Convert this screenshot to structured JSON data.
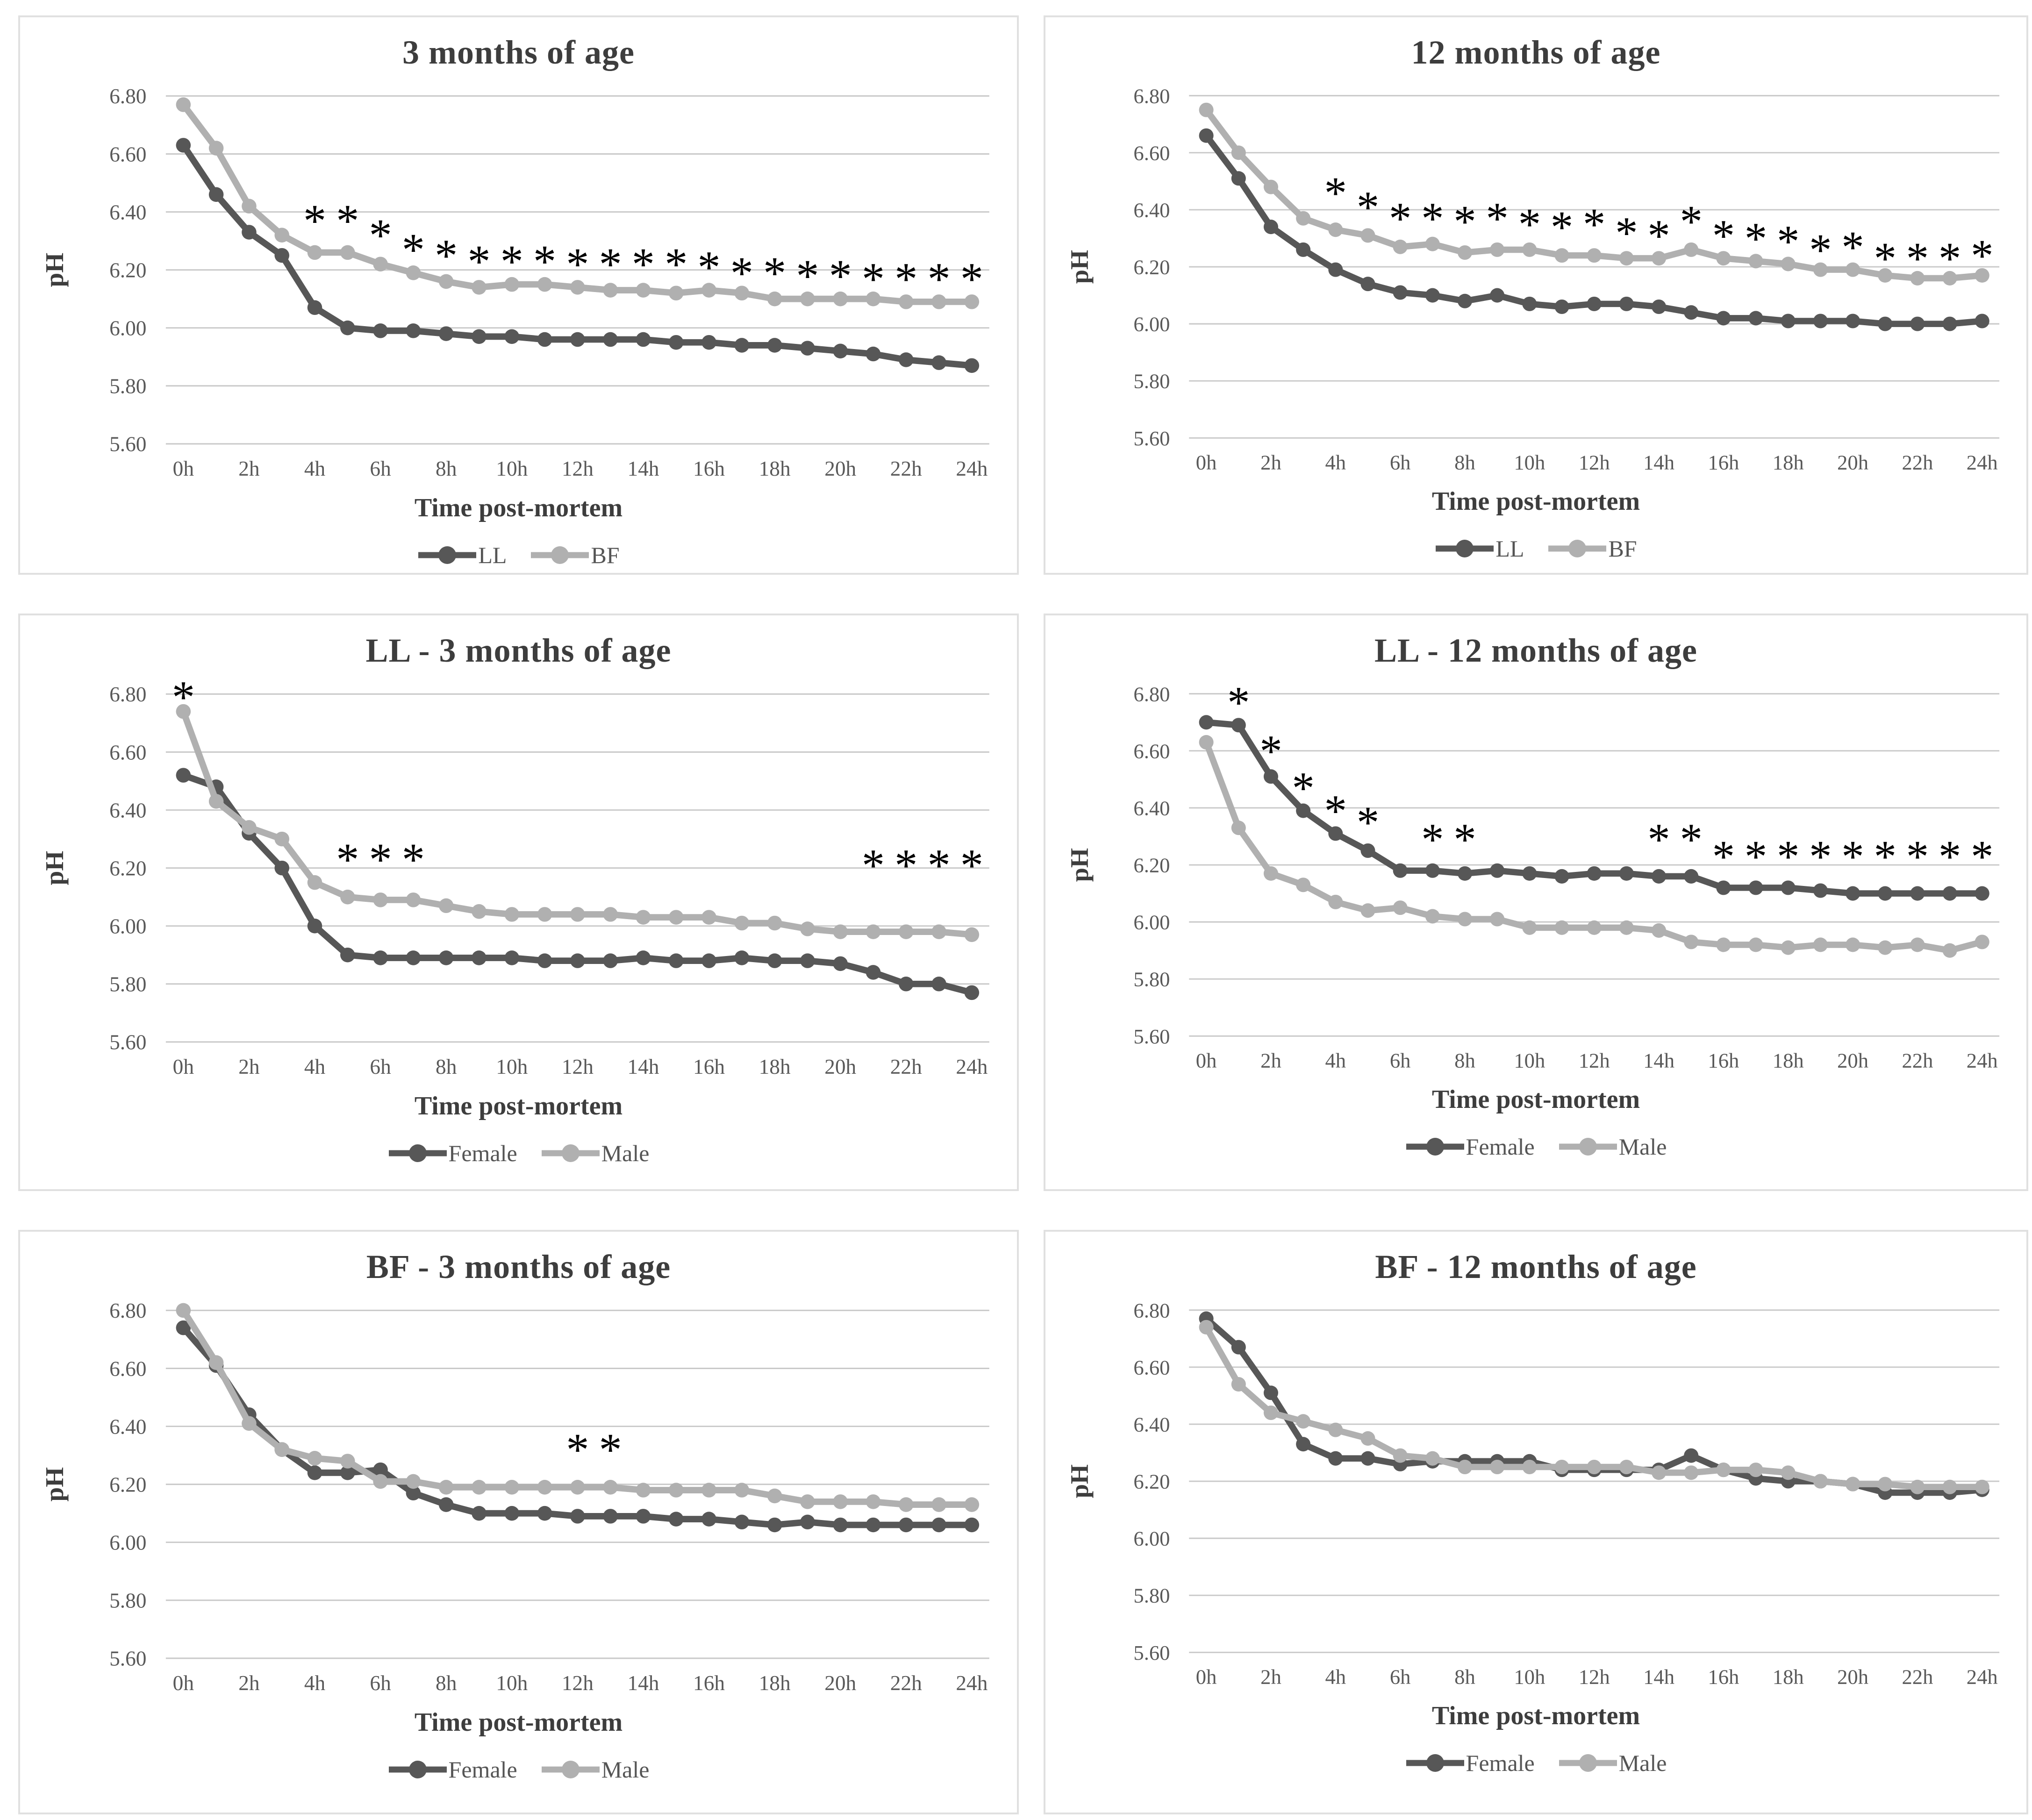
{
  "figure": {
    "y_axis_label": "pH",
    "x_axis_label": "Time post-mortem",
    "significance_marker": "*",
    "y_tick_labels": [
      "6.80",
      "6.60",
      "6.40",
      "6.20",
      "6.00",
      "5.80",
      "5.60"
    ],
    "x_tick_labels": [
      "0h",
      "2h",
      "4h",
      "6h",
      "8h",
      "10h",
      "12h",
      "14h",
      "16h",
      "18h",
      "20h",
      "22h",
      "24h"
    ],
    "x_hours": [
      0,
      1,
      2,
      3,
      4,
      5,
      6,
      7,
      8,
      9,
      10,
      11,
      12,
      13,
      14,
      15,
      16,
      17,
      18,
      19,
      20,
      21,
      22,
      23,
      24
    ]
  },
  "colors": {
    "series_dark": "#575757",
    "series_light": "#b0b0b0",
    "gridline": "#c9c9c9",
    "panel_border": "#e0e0e0",
    "tick_text": "#595959",
    "heading_text": "#3d3d3d",
    "asterisk": "#000000",
    "background": "#ffffff"
  },
  "chart_data": [
    {
      "type": "line",
      "title": "3 months of age",
      "xlabel": "Time post-mortem",
      "ylabel": "pH",
      "ylim": [
        5.6,
        6.8
      ],
      "series": [
        {
          "name": "LL",
          "color": "#575757",
          "values": [
            6.63,
            6.46,
            6.33,
            6.25,
            6.07,
            6.0,
            5.99,
            5.99,
            5.98,
            5.97,
            5.97,
            5.96,
            5.96,
            5.96,
            5.96,
            5.95,
            5.95,
            5.94,
            5.94,
            5.93,
            5.92,
            5.91,
            5.89,
            5.88,
            5.87
          ]
        },
        {
          "name": "BF",
          "color": "#b0b0b0",
          "values": [
            6.77,
            6.62,
            6.42,
            6.32,
            6.26,
            6.26,
            6.22,
            6.19,
            6.16,
            6.14,
            6.15,
            6.15,
            6.14,
            6.13,
            6.13,
            6.12,
            6.13,
            6.12,
            6.1,
            6.1,
            6.1,
            6.1,
            6.09,
            6.09,
            6.09
          ]
        }
      ],
      "asterisks": [
        [
          4,
          6.37
        ],
        [
          5,
          6.37
        ],
        [
          6,
          6.32
        ],
        [
          7,
          6.27
        ],
        [
          8,
          6.25
        ],
        [
          9,
          6.23
        ],
        [
          10,
          6.23
        ],
        [
          11,
          6.23
        ],
        [
          12,
          6.22
        ],
        [
          13,
          6.22
        ],
        [
          14,
          6.22
        ],
        [
          15,
          6.22
        ],
        [
          16,
          6.21
        ],
        [
          17,
          6.19
        ],
        [
          18,
          6.19
        ],
        [
          19,
          6.18
        ],
        [
          20,
          6.18
        ],
        [
          21,
          6.17
        ],
        [
          22,
          6.17
        ],
        [
          23,
          6.17
        ],
        [
          24,
          6.17
        ]
      ]
    },
    {
      "type": "line",
      "title": "12 months of age",
      "xlabel": "Time post-mortem",
      "ylabel": "pH",
      "ylim": [
        5.6,
        6.8
      ],
      "series": [
        {
          "name": "LL",
          "color": "#575757",
          "values": [
            6.66,
            6.51,
            6.34,
            6.26,
            6.19,
            6.14,
            6.11,
            6.1,
            6.08,
            6.1,
            6.07,
            6.06,
            6.07,
            6.07,
            6.06,
            6.04,
            6.02,
            6.02,
            6.01,
            6.01,
            6.01,
            6.0,
            6.0,
            6.0,
            6.01
          ]
        },
        {
          "name": "BF",
          "color": "#b0b0b0",
          "values": [
            6.75,
            6.6,
            6.48,
            6.37,
            6.33,
            6.31,
            6.27,
            6.28,
            6.25,
            6.26,
            6.26,
            6.24,
            6.24,
            6.23,
            6.23,
            6.26,
            6.23,
            6.22,
            6.21,
            6.19,
            6.19,
            6.17,
            6.16,
            6.16,
            6.17
          ]
        }
      ],
      "asterisks": [
        [
          4,
          6.46
        ],
        [
          5,
          6.41
        ],
        [
          6,
          6.37
        ],
        [
          7,
          6.37
        ],
        [
          8,
          6.36
        ],
        [
          9,
          6.37
        ],
        [
          10,
          6.35
        ],
        [
          11,
          6.34
        ],
        [
          12,
          6.35
        ],
        [
          13,
          6.32
        ],
        [
          14,
          6.31
        ],
        [
          15,
          6.36
        ],
        [
          16,
          6.31
        ],
        [
          17,
          6.3
        ],
        [
          18,
          6.29
        ],
        [
          19,
          6.26
        ],
        [
          20,
          6.27
        ],
        [
          21,
          6.23
        ],
        [
          22,
          6.23
        ],
        [
          23,
          6.23
        ],
        [
          24,
          6.24
        ]
      ]
    },
    {
      "type": "line",
      "title": "LL - 3 months of age",
      "xlabel": "Time post-mortem",
      "ylabel": "pH",
      "ylim": [
        5.6,
        6.8
      ],
      "series": [
        {
          "name": "Female",
          "color": "#575757",
          "values": [
            6.52,
            6.48,
            6.32,
            6.2,
            6.0,
            5.9,
            5.89,
            5.89,
            5.89,
            5.89,
            5.89,
            5.88,
            5.88,
            5.88,
            5.89,
            5.88,
            5.88,
            5.89,
            5.88,
            5.88,
            5.87,
            5.84,
            5.8,
            5.8,
            5.77
          ]
        },
        {
          "name": "Male",
          "color": "#b0b0b0",
          "values": [
            6.74,
            6.43,
            6.34,
            6.3,
            6.15,
            6.1,
            6.09,
            6.09,
            6.07,
            6.05,
            6.04,
            6.04,
            6.04,
            6.04,
            6.03,
            6.03,
            6.03,
            6.01,
            6.01,
            5.99,
            5.98,
            5.98,
            5.98,
            5.98,
            5.97
          ]
        }
      ],
      "asterisks": [
        [
          0,
          6.79
        ],
        [
          5,
          6.23
        ],
        [
          6,
          6.23
        ],
        [
          7,
          6.23
        ],
        [
          21,
          6.21
        ],
        [
          22,
          6.21
        ],
        [
          23,
          6.21
        ],
        [
          24,
          6.21
        ]
      ]
    },
    {
      "type": "line",
      "title": "LL - 12 months of age",
      "xlabel": "Time post-mortem",
      "ylabel": "pH",
      "ylim": [
        5.6,
        6.8
      ],
      "series": [
        {
          "name": "Female",
          "color": "#575757",
          "values": [
            6.7,
            6.69,
            6.51,
            6.39,
            6.31,
            6.25,
            6.18,
            6.18,
            6.17,
            6.18,
            6.17,
            6.16,
            6.17,
            6.17,
            6.16,
            6.16,
            6.12,
            6.12,
            6.12,
            6.11,
            6.1,
            6.1,
            6.1,
            6.1,
            6.1
          ]
        },
        {
          "name": "Male",
          "color": "#b0b0b0",
          "values": [
            6.63,
            6.33,
            6.17,
            6.13,
            6.07,
            6.04,
            6.05,
            6.02,
            6.01,
            6.01,
            5.98,
            5.98,
            5.98,
            5.98,
            5.97,
            5.93,
            5.92,
            5.92,
            5.91,
            5.92,
            5.92,
            5.91,
            5.92,
            5.9,
            5.93
          ]
        }
      ],
      "asterisks": [
        [
          1,
          6.77
        ],
        [
          2,
          6.6
        ],
        [
          3,
          6.47
        ],
        [
          4,
          6.39
        ],
        [
          5,
          6.35
        ],
        [
          7,
          6.29
        ],
        [
          8,
          6.29
        ],
        [
          14,
          6.29
        ],
        [
          15,
          6.29
        ],
        [
          16,
          6.23
        ],
        [
          17,
          6.23
        ],
        [
          18,
          6.23
        ],
        [
          19,
          6.23
        ],
        [
          20,
          6.23
        ],
        [
          21,
          6.23
        ],
        [
          22,
          6.23
        ],
        [
          23,
          6.23
        ],
        [
          24,
          6.23
        ]
      ]
    },
    {
      "type": "line",
      "title": "BF - 3 months of age",
      "xlabel": "Time post-mortem",
      "ylabel": "pH",
      "ylim": [
        5.6,
        6.8
      ],
      "series": [
        {
          "name": "Female",
          "color": "#575757",
          "values": [
            6.74,
            6.61,
            6.44,
            6.32,
            6.24,
            6.24,
            6.25,
            6.17,
            6.13,
            6.1,
            6.1,
            6.1,
            6.09,
            6.09,
            6.09,
            6.08,
            6.08,
            6.07,
            6.06,
            6.07,
            6.06,
            6.06,
            6.06,
            6.06,
            6.06
          ]
        },
        {
          "name": "Male",
          "color": "#b0b0b0",
          "values": [
            6.8,
            6.62,
            6.41,
            6.32,
            6.29,
            6.28,
            6.21,
            6.21,
            6.19,
            6.19,
            6.19,
            6.19,
            6.19,
            6.19,
            6.18,
            6.18,
            6.18,
            6.18,
            6.16,
            6.14,
            6.14,
            6.14,
            6.13,
            6.13,
            6.13
          ]
        }
      ],
      "asterisks": [
        [
          12,
          6.32
        ],
        [
          13,
          6.32
        ]
      ]
    },
    {
      "type": "line",
      "title": "BF - 12 months of age",
      "xlabel": "Time post-mortem",
      "ylabel": "pH",
      "ylim": [
        5.6,
        6.8
      ],
      "series": [
        {
          "name": "Female",
          "color": "#575757",
          "values": [
            6.77,
            6.67,
            6.51,
            6.33,
            6.28,
            6.28,
            6.26,
            6.27,
            6.27,
            6.27,
            6.27,
            6.24,
            6.24,
            6.24,
            6.24,
            6.29,
            6.24,
            6.21,
            6.2,
            6.2,
            6.19,
            6.16,
            6.16,
            6.16,
            6.17
          ]
        },
        {
          "name": "Male",
          "color": "#b0b0b0",
          "values": [
            6.74,
            6.54,
            6.44,
            6.41,
            6.38,
            6.35,
            6.29,
            6.28,
            6.25,
            6.25,
            6.25,
            6.25,
            6.25,
            6.25,
            6.23,
            6.23,
            6.24,
            6.24,
            6.23,
            6.2,
            6.19,
            6.19,
            6.18,
            6.18,
            6.18
          ]
        }
      ],
      "asterisks": []
    }
  ]
}
